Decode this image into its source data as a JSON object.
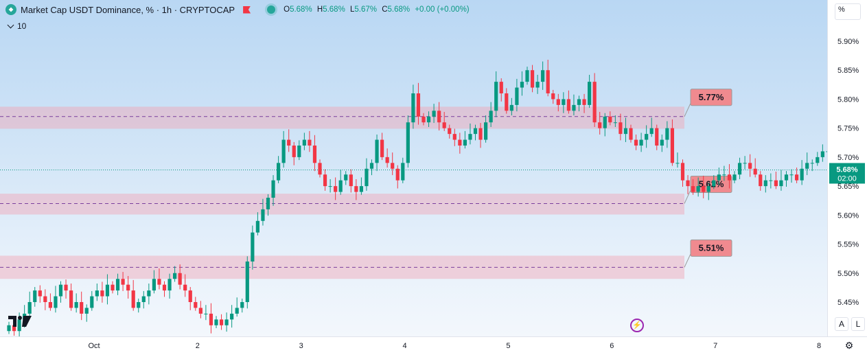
{
  "header": {
    "title": "Market Cap USDT Dominance, % · 1h · CRYPTOCAP",
    "ohlc": [
      {
        "label": "O",
        "value": "5.68%"
      },
      {
        "label": "H",
        "value": "5.68%"
      },
      {
        "label": "L",
        "value": "5.67%"
      },
      {
        "label": "C",
        "value": "5.68%"
      }
    ],
    "change": "+0.00 (+0.00%)",
    "sub_value": "10",
    "scale_button": "%"
  },
  "axis_buttons": {
    "auto": "A",
    "log": "L"
  },
  "colors": {
    "up": "#089981",
    "down": "#f23645",
    "zone_fill": "#f2a3b3",
    "label_bg": "#f08a8f",
    "price_tag": "#089981"
  },
  "icons": {
    "symbol": "symbol-icon",
    "flag": "flag-icon",
    "status": "status-dot-icon",
    "bolt": "bolt-icon",
    "settings": "gear-icon",
    "logo": "tradingview-logo"
  },
  "chart_data": {
    "type": "candlestick",
    "y_range": [
      5.4,
      5.93
    ],
    "y_ticks": [
      "5.90%",
      "5.85%",
      "5.80%",
      "5.75%",
      "5.70%",
      "5.65%",
      "5.60%",
      "5.55%",
      "5.50%",
      "5.45%"
    ],
    "y_tick_values": [
      5.9,
      5.85,
      5.8,
      5.75,
      5.7,
      5.65,
      5.6,
      5.55,
      5.5,
      5.45
    ],
    "x_ticks": [
      "Oct",
      "2",
      "3",
      "4",
      "5",
      "6",
      "7",
      "8"
    ],
    "x_tick_hours": [
      0,
      24,
      48,
      72,
      96,
      120,
      144,
      168
    ],
    "x_range_hours": [
      -21,
      170
    ],
    "current_price": {
      "label": "5.68%",
      "countdown": "02:00",
      "value": 5.678
    },
    "zones": [
      {
        "label": "5.77%",
        "level": 5.77,
        "top": 5.787,
        "bottom": 5.749
      },
      {
        "label": "5.62%",
        "level": 5.62,
        "top": 5.637,
        "bottom": 5.601
      },
      {
        "label": "5.51%",
        "level": 5.51,
        "top": 5.53,
        "bottom": 5.49
      }
    ],
    "closes": [
      5.41,
      5.4,
      5.42,
      5.43,
      5.45,
      5.47,
      5.46,
      5.45,
      5.44,
      5.46,
      5.48,
      5.47,
      5.44,
      5.45,
      5.43,
      5.44,
      5.46,
      5.47,
      5.46,
      5.48,
      5.47,
      5.49,
      5.48,
      5.47,
      5.44,
      5.45,
      5.46,
      5.47,
      5.49,
      5.48,
      5.47,
      5.49,
      5.5,
      5.48,
      5.47,
      5.45,
      5.44,
      5.43,
      5.43,
      5.41,
      5.42,
      5.41,
      5.42,
      5.43,
      5.44,
      5.45,
      5.52,
      5.57,
      5.59,
      5.61,
      5.63,
      5.66,
      5.69,
      5.73,
      5.72,
      5.7,
      5.72,
      5.73,
      5.72,
      5.69,
      5.67,
      5.65,
      5.65,
      5.64,
      5.66,
      5.67,
      5.65,
      5.64,
      5.65,
      5.68,
      5.69,
      5.73,
      5.7,
      5.69,
      5.68,
      5.66,
      5.69,
      5.76,
      5.81,
      5.77,
      5.76,
      5.77,
      5.78,
      5.76,
      5.75,
      5.74,
      5.73,
      5.72,
      5.73,
      5.74,
      5.75,
      5.73,
      5.76,
      5.78,
      5.83,
      5.81,
      5.78,
      5.79,
      5.82,
      5.83,
      5.85,
      5.82,
      5.83,
      5.85,
      5.81,
      5.8,
      5.79,
      5.8,
      5.78,
      5.79,
      5.8,
      5.79,
      5.83,
      5.76,
      5.75,
      5.77,
      5.76,
      5.76,
      5.74,
      5.75,
      5.73,
      5.72,
      5.73,
      5.74,
      5.75,
      5.72,
      5.73,
      5.75,
      5.69,
      5.69,
      5.66,
      5.65,
      5.64,
      5.65,
      5.64,
      5.65,
      5.66,
      5.67,
      5.67,
      5.66,
      5.67,
      5.69,
      5.69,
      5.68,
      5.67,
      5.65,
      5.66,
      5.66,
      5.65,
      5.66,
      5.67,
      5.67,
      5.66,
      5.68,
      5.69,
      5.69,
      5.7,
      5.71,
      5.71,
      5.69,
      5.68,
      5.68,
      5.67,
      5.68,
      5.69,
      5.69,
      5.68
    ]
  }
}
